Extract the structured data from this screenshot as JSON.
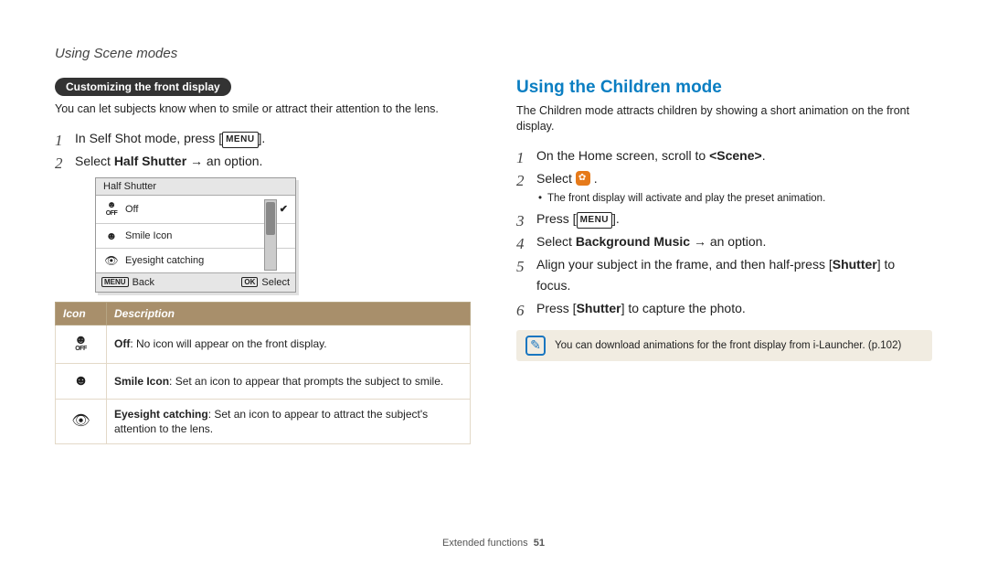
{
  "header": {
    "breadcrumb": "Using Scene modes"
  },
  "left": {
    "pill": "Customizing the front display",
    "intro": "You can let subjects know when to smile or attract their attention to the lens.",
    "steps": {
      "0": {
        "pre": "In Self Shot mode, press [",
        "menu": "MENU",
        "post": "]."
      },
      "1": {
        "pre": "Select ",
        "bold": "Half Shutter",
        "post": " → an option."
      }
    },
    "ui": {
      "title": "Half Shutter",
      "rows": {
        "0": {
          "icon": "off",
          "label": "Off",
          "checked": "✔"
        },
        "1": {
          "icon": "smile",
          "label": "Smile Icon"
        },
        "2": {
          "icon": "eye",
          "label": "Eyesight catching"
        }
      },
      "back_menu": "MENU",
      "back_label": "Back",
      "select_ok": "OK",
      "select_label": "Select"
    },
    "table": {
      "col_icon": "Icon",
      "col_desc": "Description",
      "row0": {
        "bold": "Off",
        "rest": ": No icon will appear on the front display."
      },
      "row1": {
        "bold": "Smile Icon",
        "rest": ": Set an icon to appear that prompts the subject to smile."
      },
      "row2": {
        "bold": "Eyesight catching",
        "rest": ": Set an icon to appear to attract the subject's attention to the lens."
      }
    }
  },
  "right": {
    "title": "Using the Children mode",
    "intro": "The Children mode attracts children by showing a short animation on the front display.",
    "steps": {
      "0": {
        "pre": "On the Home screen, scroll to ",
        "bold": "<Scene>",
        "post": "."
      },
      "1": {
        "pre": "Select ",
        "icon": "kid",
        "post": " .",
        "sub": "The front display will activate and play the preset animation."
      },
      "2": {
        "pre": "Press [",
        "menu": "MENU",
        "post": "]."
      },
      "3": {
        "pre": "Select ",
        "bold": "Background Music",
        "post": " → an option."
      },
      "4": {
        "pre": "Align your subject in the frame, and then half-press [",
        "bold2": "Shutter",
        "post": "] to focus."
      },
      "5": {
        "pre": "Press [",
        "bold2": "Shutter",
        "post": "] to capture the photo."
      }
    },
    "note": "You can download animations for the front display from i-Launcher. (p.102)"
  },
  "footer": {
    "section": "Extended functions",
    "page": "51"
  },
  "colors": {
    "accent_blue": "#0a7ec2",
    "pill_bg": "#333333",
    "table_header_bg": "#a88f6b",
    "note_bg": "#f1ece1",
    "kid_icon_bg": "#e67a1a"
  }
}
